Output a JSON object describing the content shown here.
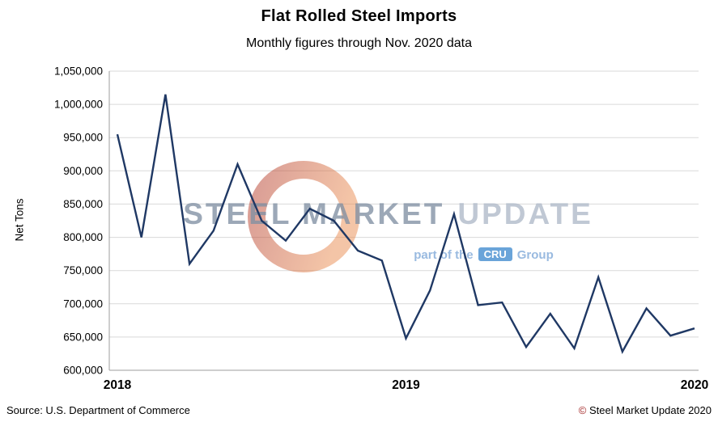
{
  "chart_data": {
    "type": "line",
    "title": "Flat Rolled Steel Imports",
    "subtitle": "Monthly figures through Nov. 2020 data",
    "ylabel": "Net Tons",
    "ylim": [
      600000,
      1050000
    ],
    "ytick_step": 50000,
    "grid": true,
    "legend": "none",
    "line_color": "#1F3864",
    "x_tick_labels": [
      "2018",
      "2019",
      "2020"
    ],
    "x_tick_positions": [
      0,
      12,
      24
    ],
    "series": [
      {
        "name": "Flat Rolled Steel Imports (Net Tons)",
        "months": [
          "Jan 2018",
          "Feb 2018",
          "Mar 2018",
          "Apr 2018",
          "May 2018",
          "Jun 2018",
          "Jul 2018",
          "Aug 2018",
          "Sep 2018",
          "Oct 2018",
          "Nov 2018",
          "Dec 2018",
          "Jan 2019",
          "Feb 2019",
          "Mar 2019",
          "Apr 2019",
          "May 2019",
          "Jun 2019",
          "Jul 2019",
          "Aug 2019",
          "Sep 2019",
          "Oct 2019",
          "Nov 2019",
          "Dec 2019",
          "Jan 2020"
        ],
        "values": [
          955000,
          800000,
          1015000,
          760000,
          810000,
          910000,
          825000,
          795000,
          843000,
          825000,
          780000,
          765000,
          648000,
          720000,
          835000,
          698000,
          702000,
          635000,
          685000,
          633000,
          740000,
          628000,
          693000,
          652000,
          663000
        ]
      }
    ]
  },
  "watermark": {
    "brand_primary": "STEEL MARKET",
    "brand_secondary": "UPDATE",
    "tagline_prefix": "part of the",
    "cru_badge": "CRU",
    "tagline_suffix": "Group",
    "swirl_color_start": "#B33A2B",
    "swirl_color_end": "#E98B4F"
  },
  "footer": {
    "source": "Source: U.S. Department of Commerce",
    "copyright_symbol": "©",
    "copyright_text": " Steel Market Update 2020"
  }
}
